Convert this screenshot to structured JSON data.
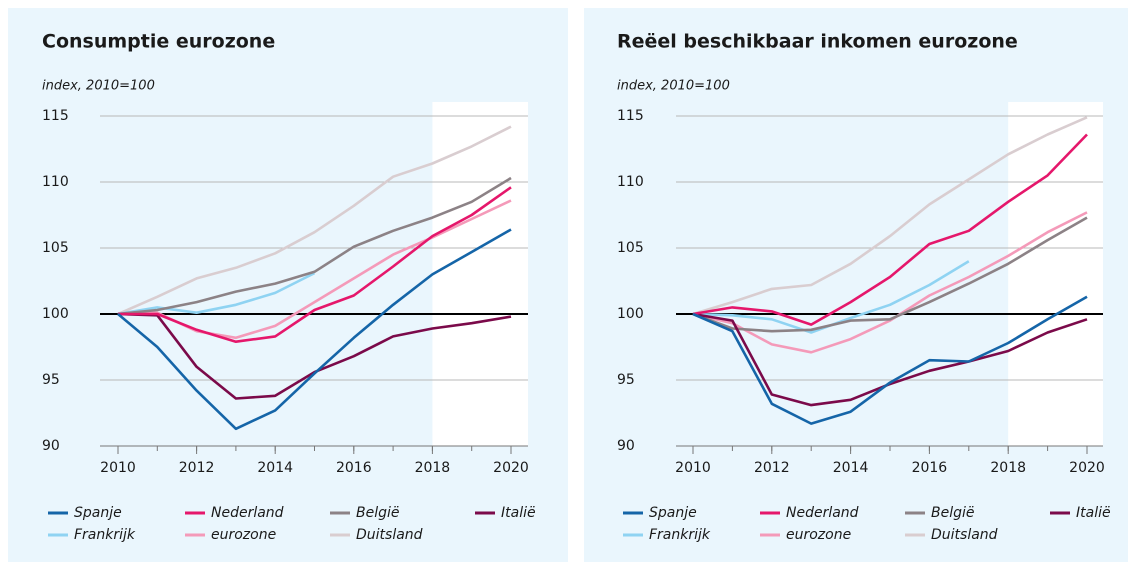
{
  "chart_data": [
    {
      "type": "line",
      "title": "Consumptie eurozone",
      "ylabel": "index, 2010=100",
      "x": [
        2010,
        2011,
        2012,
        2013,
        2014,
        2015,
        2016,
        2017,
        2018,
        2019,
        2020
      ],
      "xlim": [
        2010,
        2020
      ],
      "xticks": [
        2010,
        2012,
        2014,
        2016,
        2018,
        2020
      ],
      "ylim": [
        90,
        115
      ],
      "yticks": [
        90,
        95,
        100,
        105,
        110,
        115
      ],
      "grid": true,
      "reference_line": 100,
      "highlight_xrange": [
        2018,
        2020
      ],
      "legend": "bottom",
      "series": [
        {
          "name": "Spanje",
          "color": "#1565a8",
          "values": [
            100,
            97.5,
            94.2,
            91.3,
            92.7,
            95.5,
            98.2,
            100.7,
            103,
            104.7,
            106.4
          ]
        },
        {
          "name": "Nederland",
          "color": "#e5176b",
          "values": [
            100,
            100,
            98.8,
            97.9,
            98.3,
            100.3,
            101.4,
            103.6,
            105.9,
            107.5,
            109.6
          ]
        },
        {
          "name": "België",
          "color": "#8c8286",
          "values": [
            100,
            100.3,
            100.9,
            101.7,
            102.3,
            103.2,
            105.1,
            106.3,
            107.3,
            108.5,
            110.3
          ]
        },
        {
          "name": "Italië",
          "color": "#7b0a4a",
          "values": [
            100,
            99.9,
            96,
            93.6,
            93.8,
            95.6,
            96.8,
            98.3,
            98.9,
            99.3,
            99.8
          ]
        },
        {
          "name": "Frankrijk",
          "color": "#8fd3f2",
          "values": [
            100,
            100.5,
            100.1,
            100.7,
            101.6,
            103.1,
            null,
            null,
            null,
            null,
            null
          ]
        },
        {
          "name": "eurozone",
          "color": "#f49ab9",
          "values": [
            100,
            100.1,
            98.7,
            98.2,
            99.1,
            100.9,
            102.7,
            104.5,
            105.8,
            107.2,
            108.6
          ]
        },
        {
          "name": "Duitsland",
          "color": "#d9cdd0",
          "values": [
            100,
            101.3,
            102.7,
            103.5,
            104.6,
            106.2,
            108.2,
            110.4,
            111.4,
            112.7,
            114.2
          ]
        }
      ]
    },
    {
      "type": "line",
      "title": "Reëel beschikbaar inkomen eurozone",
      "ylabel": "index, 2010=100",
      "x": [
        2010,
        2011,
        2012,
        2013,
        2014,
        2015,
        2016,
        2017,
        2018,
        2019,
        2020
      ],
      "xlim": [
        2010,
        2020
      ],
      "xticks": [
        2010,
        2012,
        2014,
        2016,
        2018,
        2020
      ],
      "ylim": [
        90,
        115
      ],
      "yticks": [
        90,
        95,
        100,
        105,
        110,
        115
      ],
      "grid": true,
      "reference_line": 100,
      "highlight_xrange": [
        2018,
        2020
      ],
      "legend": "bottom",
      "series": [
        {
          "name": "Spanje",
          "color": "#1565a8",
          "values": [
            100,
            98.7,
            93.2,
            91.7,
            92.6,
            94.8,
            96.5,
            96.4,
            97.8,
            99.6,
            101.3
          ]
        },
        {
          "name": "Nederland",
          "color": "#e5176b",
          "values": [
            100,
            100.5,
            100.2,
            99.2,
            100.9,
            102.8,
            105.3,
            106.3,
            108.5,
            110.5,
            113.6
          ]
        },
        {
          "name": "België",
          "color": "#8c8286",
          "values": [
            100,
            98.9,
            98.7,
            98.8,
            99.5,
            99.6,
            100.9,
            102.3,
            103.8,
            105.6,
            107.3
          ]
        },
        {
          "name": "Italië",
          "color": "#7b0a4a",
          "values": [
            100,
            99.5,
            93.9,
            93.1,
            93.5,
            94.7,
            95.7,
            96.4,
            97.2,
            98.6,
            99.6
          ]
        },
        {
          "name": "Frankrijk",
          "color": "#8fd3f2",
          "values": [
            100,
            99.9,
            99.6,
            98.6,
            99.7,
            100.7,
            102.2,
            104,
            null,
            null,
            null
          ]
        },
        {
          "name": "eurozone",
          "color": "#f49ab9",
          "values": [
            100,
            99.3,
            97.7,
            97.1,
            98.1,
            99.5,
            101.4,
            102.8,
            104.4,
            106.2,
            107.7
          ]
        },
        {
          "name": "Duitsland",
          "color": "#d9cdd0",
          "values": [
            100,
            100.9,
            101.9,
            102.2,
            103.8,
            105.9,
            108.3,
            110.2,
            112.1,
            113.6,
            114.9
          ]
        }
      ]
    }
  ]
}
